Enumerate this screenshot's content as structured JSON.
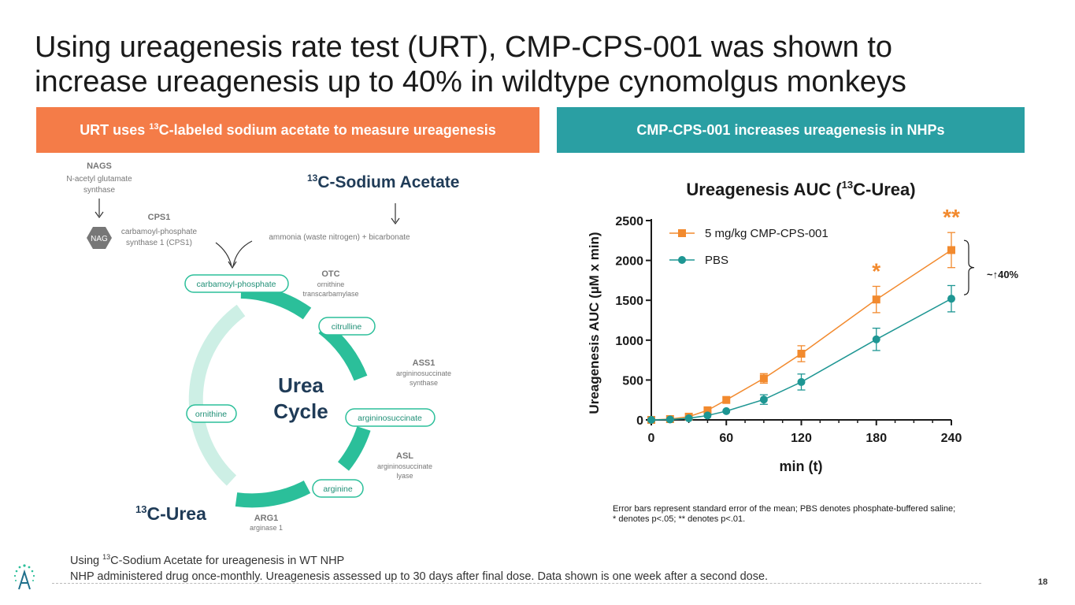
{
  "slide": {
    "title_line1": "Using ureagenesis rate test (URT), CMP-CPS-001 was shown to",
    "title_line2": "increase ureagenesis up to 40% in wildtype cynomolgus monkeys",
    "page_number": "18"
  },
  "banners": {
    "left": {
      "prefix": "URT uses ",
      "sup": "13",
      "suffix": "C-labeled sodium acetate to measure ureagenesis",
      "color": "#F47C48"
    },
    "right": {
      "text": "CMP-CPS-001 increases ureagenesis in NHPs",
      "color": "#2A9FA3"
    }
  },
  "pathway": {
    "nags_title": "NAGS",
    "nags_line1": "N-acetyl glutamate",
    "nags_line2": "synthase",
    "nag_label": "NAG",
    "cps1_title": "CPS1",
    "cps1_line1": "carbamoyl-phosphate",
    "cps1_line2": "synthase 1 (CPS1)",
    "acetate_sup": "13",
    "acetate_label": "C-Sodium Acetate",
    "acetate_product": "ammonia (waste nitrogen) + bicarbonate",
    "otc_title": "OTC",
    "otc_line1": "ornithine",
    "otc_line2": "transcarbamylase",
    "ass1_title": "ASS1",
    "ass1_line1": "argininosuccinate",
    "ass1_line2": "synthase",
    "asl_title": "ASL",
    "asl_line1": "argininosuccinate",
    "asl_line2": "lyase",
    "arg1_title": "ARG1",
    "arg1_line1": "arginase 1",
    "urea_sup": "13",
    "urea_label": "C-Urea",
    "cycle_line1": "Urea",
    "cycle_line2": "Cycle",
    "nodes": {
      "carbamoyl_phosphate": "carbamoyl-phosphate",
      "citrulline": "citrulline",
      "argininosuccinate": "argininosuccinate",
      "arginine": "arginine",
      "ornithine": "ornithine"
    },
    "colors": {
      "teal": "#2BBF9A",
      "teal_light": "#CDEFE5",
      "navy": "#1F3B57",
      "gray": "#777777"
    }
  },
  "chart_data": {
    "type": "line",
    "title_prefix": "Ureagenesis AUC (",
    "title_sup": "13",
    "title_suffix": "C-Urea)",
    "xlabel": "min (t)",
    "ylabel": "Ureagenesis AUC (µM x min)",
    "x": [
      0,
      15,
      30,
      45,
      60,
      90,
      120,
      180,
      240
    ],
    "xticks": [
      0,
      60,
      120,
      180,
      240
    ],
    "yticks": [
      0,
      500,
      1000,
      1500,
      2000,
      2500
    ],
    "xlim": [
      0,
      240
    ],
    "ylim": [
      0,
      2500
    ],
    "series": [
      {
        "name": "5 mg/kg CMP-CPS-001",
        "color": "#F28A2E",
        "marker": "square",
        "values": [
          0,
          10,
          40,
          120,
          250,
          520,
          830,
          1510,
          2130
        ],
        "errors": [
          0,
          0,
          0,
          0,
          0,
          60,
          100,
          165,
          220
        ]
      },
      {
        "name": "PBS",
        "color": "#1E9693",
        "marker": "circle",
        "values": [
          0,
          5,
          20,
          55,
          110,
          255,
          475,
          1010,
          1520
        ],
        "errors": [
          0,
          0,
          0,
          0,
          0,
          60,
          100,
          140,
          165
        ]
      }
    ],
    "significance": [
      {
        "x": 180,
        "label": "*"
      },
      {
        "x": 240,
        "label": "**"
      }
    ],
    "bracket_label": "~↑40%",
    "legend_position": "top-left",
    "grid": false
  },
  "footnote": {
    "line1": "Error bars represent standard error of the mean; PBS denotes phosphate-buffered saline;",
    "line2": "* denotes p<.05; ** denotes p<.01."
  },
  "bottom": {
    "line1_prefix": "Using ",
    "line1_sup": "13",
    "line1_suffix": "C-Sodium Acetate for ureagenesis in WT NHP",
    "line2": "NHP administered drug once-monthly. Ureagenesis assessed up to 30 days after final dose. Data shown is one week after a second dose."
  },
  "logo": {
    "icon": "company-logo-icon"
  }
}
